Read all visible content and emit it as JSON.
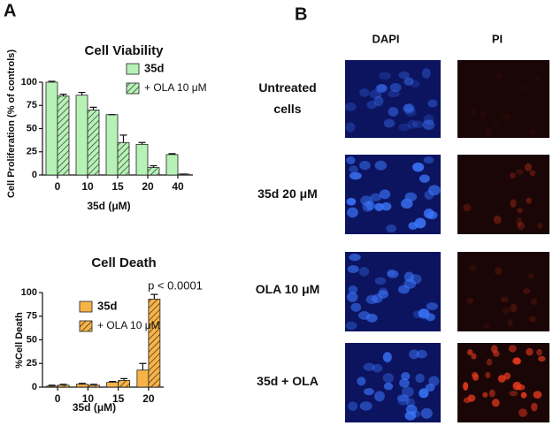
{
  "panels": {
    "a": "A",
    "b": "B"
  },
  "chart_data": [
    {
      "type": "bar",
      "title": "Cell Viability",
      "categories": [
        "0",
        "10",
        "15",
        "20",
        "40"
      ],
      "xlabel": "35d  (μM)",
      "ylabel": "Cell Proliferation (% of controls)",
      "ylim": [
        0,
        100
      ],
      "yticks": [
        0,
        25,
        50,
        75,
        100
      ],
      "series": [
        {
          "name": "35d",
          "color": "#b6f2b6",
          "hatch": false,
          "values": [
            100,
            86,
            65,
            33,
            22
          ],
          "errors": [
            1,
            3,
            0,
            2,
            1
          ]
        },
        {
          "name": "+ OLA 10 μM",
          "color": "#b6f2b6",
          "hatch": true,
          "values": [
            85,
            70,
            35,
            8,
            1
          ],
          "errors": [
            2,
            3,
            8,
            2,
            0
          ]
        }
      ]
    },
    {
      "type": "bar",
      "title": "Cell Death",
      "categories": [
        "0",
        "10",
        "15",
        "20"
      ],
      "xlabel": "35d  (μM)",
      "ylabel": "%Cell Death",
      "annotation": "p < 0.0001",
      "ylim": [
        0,
        100
      ],
      "yticks": [
        0,
        25,
        50,
        75,
        100
      ],
      "series": [
        {
          "name": "35d",
          "color": "#f8b347",
          "hatch": false,
          "values": [
            1,
            3,
            5,
            18
          ],
          "errors": [
            1,
            1,
            1,
            7
          ]
        },
        {
          "name": "+ OLA 10 μM",
          "color": "#f8b347",
          "hatch": true,
          "values": [
            2,
            2,
            7,
            93
          ],
          "errors": [
            1,
            1,
            2,
            5
          ]
        }
      ]
    }
  ],
  "microscopy": {
    "columns": [
      "DAPI",
      "PI"
    ],
    "rows": [
      [
        "Untreated",
        "cells"
      ],
      [
        "35d 20 μM"
      ],
      [
        "OLA 10 μM"
      ],
      [
        "35d + OLA"
      ]
    ]
  }
}
